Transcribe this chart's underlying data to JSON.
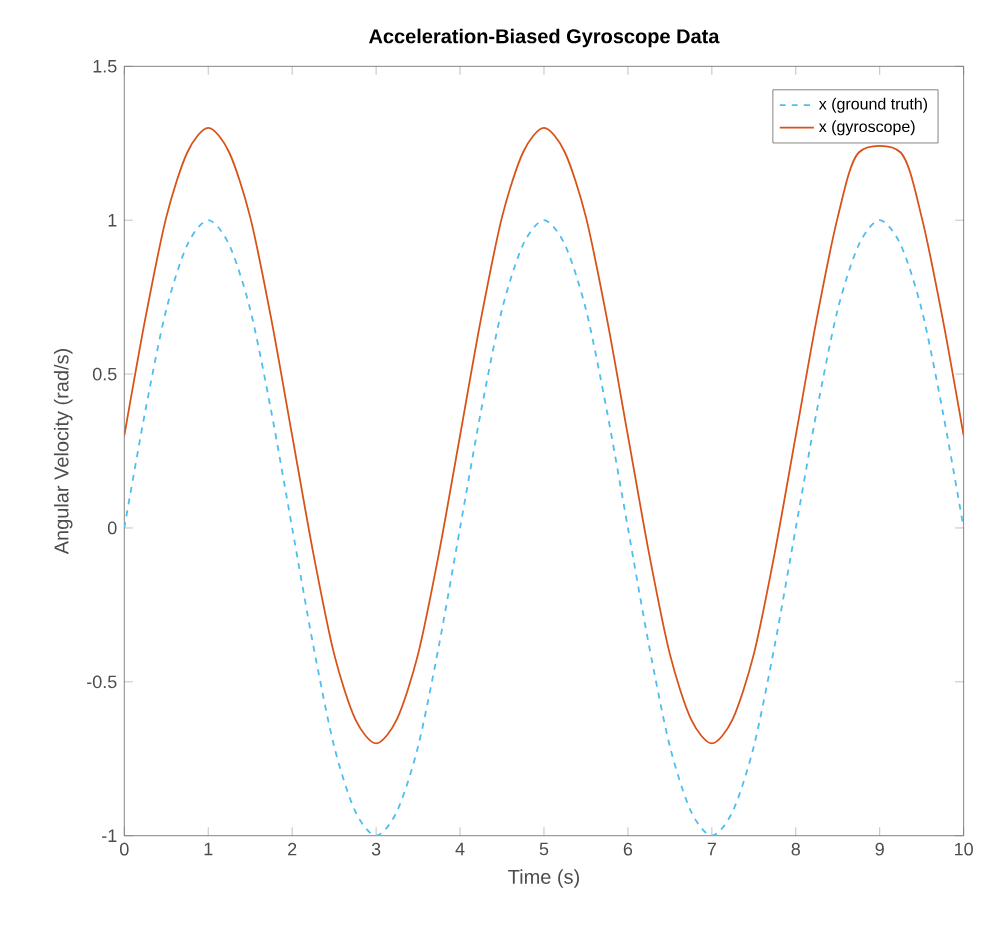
{
  "chart_data": {
    "type": "line",
    "title": "Acceleration-Biased Gyroscope Data",
    "xlabel": "Time (s)",
    "ylabel": "Angular Velocity (rad/s)",
    "x": [
      0,
      0.25,
      0.5,
      0.75,
      1,
      1.25,
      1.5,
      1.75,
      2,
      2.25,
      2.5,
      2.75,
      3,
      3.25,
      3.5,
      3.75,
      4,
      4.25,
      4.5,
      4.75,
      5,
      5.25,
      5.5,
      5.75,
      6,
      6.25,
      6.5,
      6.75,
      7,
      7.25,
      7.5,
      7.75,
      8,
      8.25,
      8.5,
      8.75,
      9,
      9.25,
      9.5,
      9.75,
      10
    ],
    "series": [
      {
        "name": "x (ground truth)",
        "color": "#4dbeee",
        "line_style": "dashed",
        "values": [
          0,
          0.38,
          0.71,
          0.92,
          1,
          0.92,
          0.71,
          0.38,
          0,
          -0.38,
          -0.71,
          -0.92,
          -1,
          -0.92,
          -0.71,
          -0.38,
          0,
          0.38,
          0.71,
          0.92,
          1,
          0.92,
          0.71,
          0.38,
          0,
          -0.38,
          -0.71,
          -0.92,
          -1,
          -0.92,
          -0.71,
          -0.38,
          0,
          0.38,
          0.71,
          0.92,
          1,
          0.92,
          0.71,
          0.38,
          0
        ]
      },
      {
        "name": "x (gyroscope)",
        "color": "#d95319",
        "line_style": "solid",
        "values": [
          0.3,
          0.68,
          1.01,
          1.22,
          1.3,
          1.22,
          1.01,
          0.68,
          0.3,
          -0.08,
          -0.41,
          -0.62,
          -0.7,
          -0.62,
          -0.41,
          -0.08,
          0.3,
          0.68,
          1.01,
          1.22,
          1.3,
          1.22,
          1.01,
          0.68,
          0.3,
          -0.08,
          -0.41,
          -0.62,
          -0.7,
          -0.62,
          -0.41,
          -0.08,
          0.3,
          0.68,
          1.01,
          1.22,
          null,
          1.22,
          1.01,
          0.68,
          0.3
        ]
      }
    ],
    "xlim": [
      0,
      10
    ],
    "ylim": [
      -1,
      1.5
    ],
    "xticks": [
      0,
      1,
      2,
      3,
      4,
      5,
      6,
      7,
      8,
      9,
      10
    ],
    "yticks": [
      -1,
      -0.5,
      0,
      0.5,
      1,
      1.5
    ],
    "grid": false,
    "legend": "top right",
    "marker": "none"
  }
}
